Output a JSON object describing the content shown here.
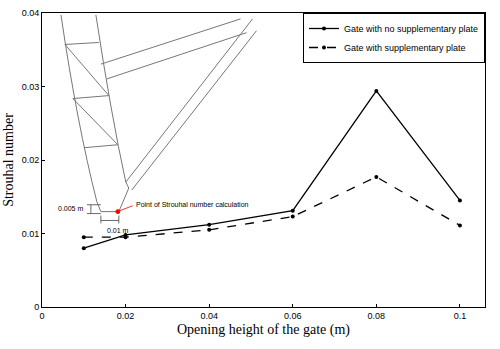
{
  "chart_data": {
    "type": "line",
    "x_label": "Opening height of the gate (m)",
    "y_label": "Strouhal number",
    "x": [
      0.01,
      0.02,
      0.04,
      0.06,
      0.08,
      0.1
    ],
    "series": [
      {
        "name": "Gate with no supplementary plate",
        "color": "#000000",
        "line_style": "solid",
        "marker": "circle",
        "values": [
          0.008,
          0.0098,
          0.0112,
          0.0131,
          0.0294,
          0.0145
        ]
      },
      {
        "name": "Gate with supplementary plate",
        "color": "#000000",
        "line_style": "dashed",
        "marker": "circle",
        "values": [
          0.0095,
          0.0095,
          0.0105,
          0.0123,
          0.0177,
          0.0111
        ]
      }
    ],
    "xlim": [
      0,
      0.106
    ],
    "xticks": [
      0,
      0.02,
      0.04,
      0.06,
      0.08,
      0.1
    ],
    "ylim": [
      0,
      0.04
    ],
    "yticks": [
      0,
      0.01,
      0.02,
      0.03,
      0.04
    ],
    "grid": false,
    "legend": "top-right",
    "annotations": [
      "0.005 m",
      "0.01 m",
      "Point of Strouhal number calculation"
    ]
  }
}
